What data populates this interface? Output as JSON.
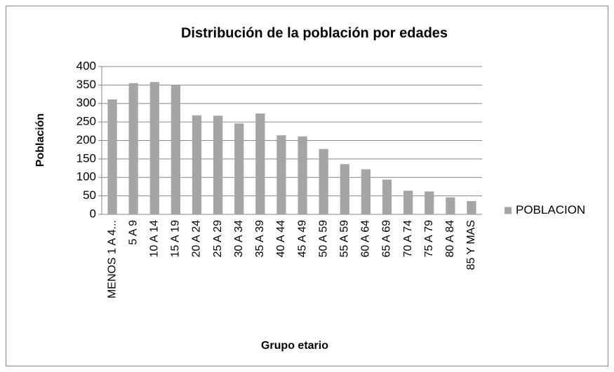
{
  "chart_data": {
    "type": "bar",
    "title": "Distribución de la población por edades",
    "x_label": "Grupo etario",
    "y_label": "Población",
    "categories": [
      "MENOS 1 A 4...",
      "5 A 9",
      "10 A 14",
      "15 A 19",
      "20 A 24",
      "25 A 29",
      "30 A 34",
      "35 A 39",
      "40 A 44",
      "45 A 49",
      "50 A 59",
      "55 A 59",
      "60 A 64",
      "65 A 69",
      "70 A 74",
      "75 A 79",
      "80 A 84",
      "85 Y MAS"
    ],
    "series": [
      {
        "name": "POBLACION",
        "color": "#a5a5a5",
        "values": [
          311,
          355,
          358,
          350,
          268,
          267,
          246,
          273,
          214,
          211,
          177,
          136,
          122,
          94,
          64,
          62,
          46,
          36
        ]
      }
    ],
    "ylim": [
      0,
      400
    ],
    "yticks": [
      0,
      50,
      100,
      150,
      200,
      250,
      300,
      350,
      400
    ],
    "grid": true,
    "legend": "right"
  }
}
